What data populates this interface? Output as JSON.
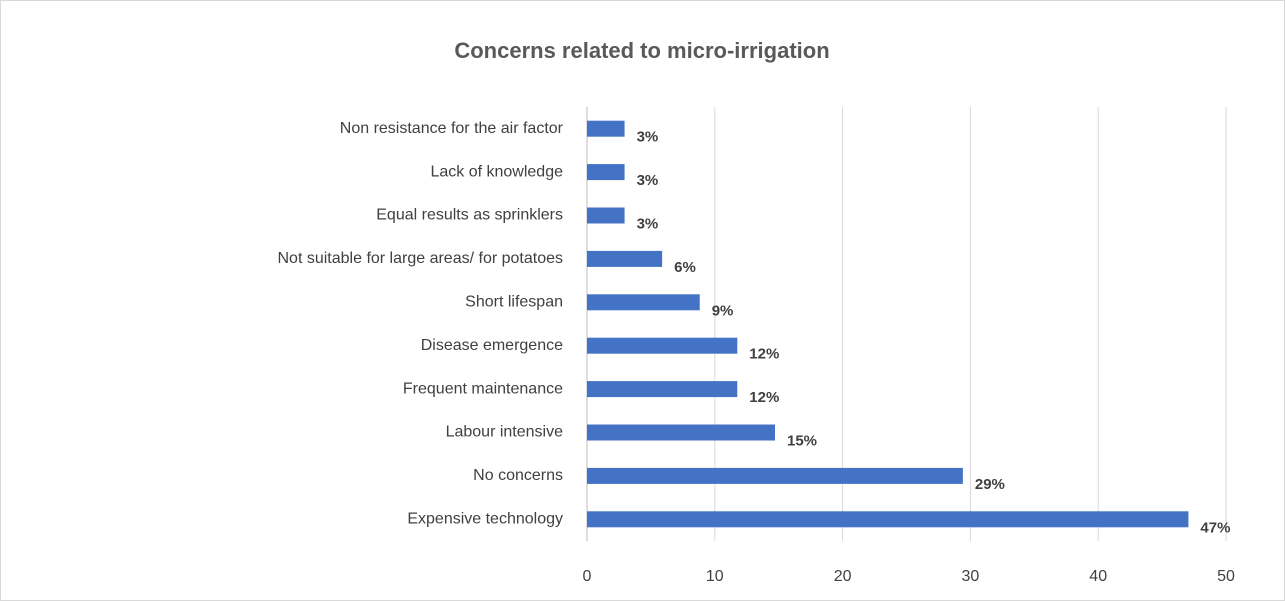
{
  "chart_data": {
    "type": "bar",
    "orientation": "horizontal",
    "title": "Concerns related to micro-irrigation",
    "categories": [
      "Expensive technology",
      "No concerns",
      "Labour intensive",
      "Frequent maintenance",
      "Disease emergence",
      "Short lifespan",
      "Not suitable for large areas/ for potatoes",
      "Equal results as sprinklers",
      "Lack of knowledge",
      "Non resistance for the air factor"
    ],
    "values": [
      47.06,
      29.41,
      14.71,
      11.76,
      11.76,
      8.82,
      5.88,
      2.94,
      2.94,
      2.94
    ],
    "value_labels": [
      "47%",
      "29%",
      "15%",
      "12%",
      "12%",
      "9%",
      "6%",
      "3%",
      "3%",
      "3%"
    ],
    "color": "#4472c4",
    "xlim": [
      0,
      50
    ],
    "xticks": [
      0,
      10,
      20,
      30,
      40,
      50
    ],
    "grid": true
  }
}
